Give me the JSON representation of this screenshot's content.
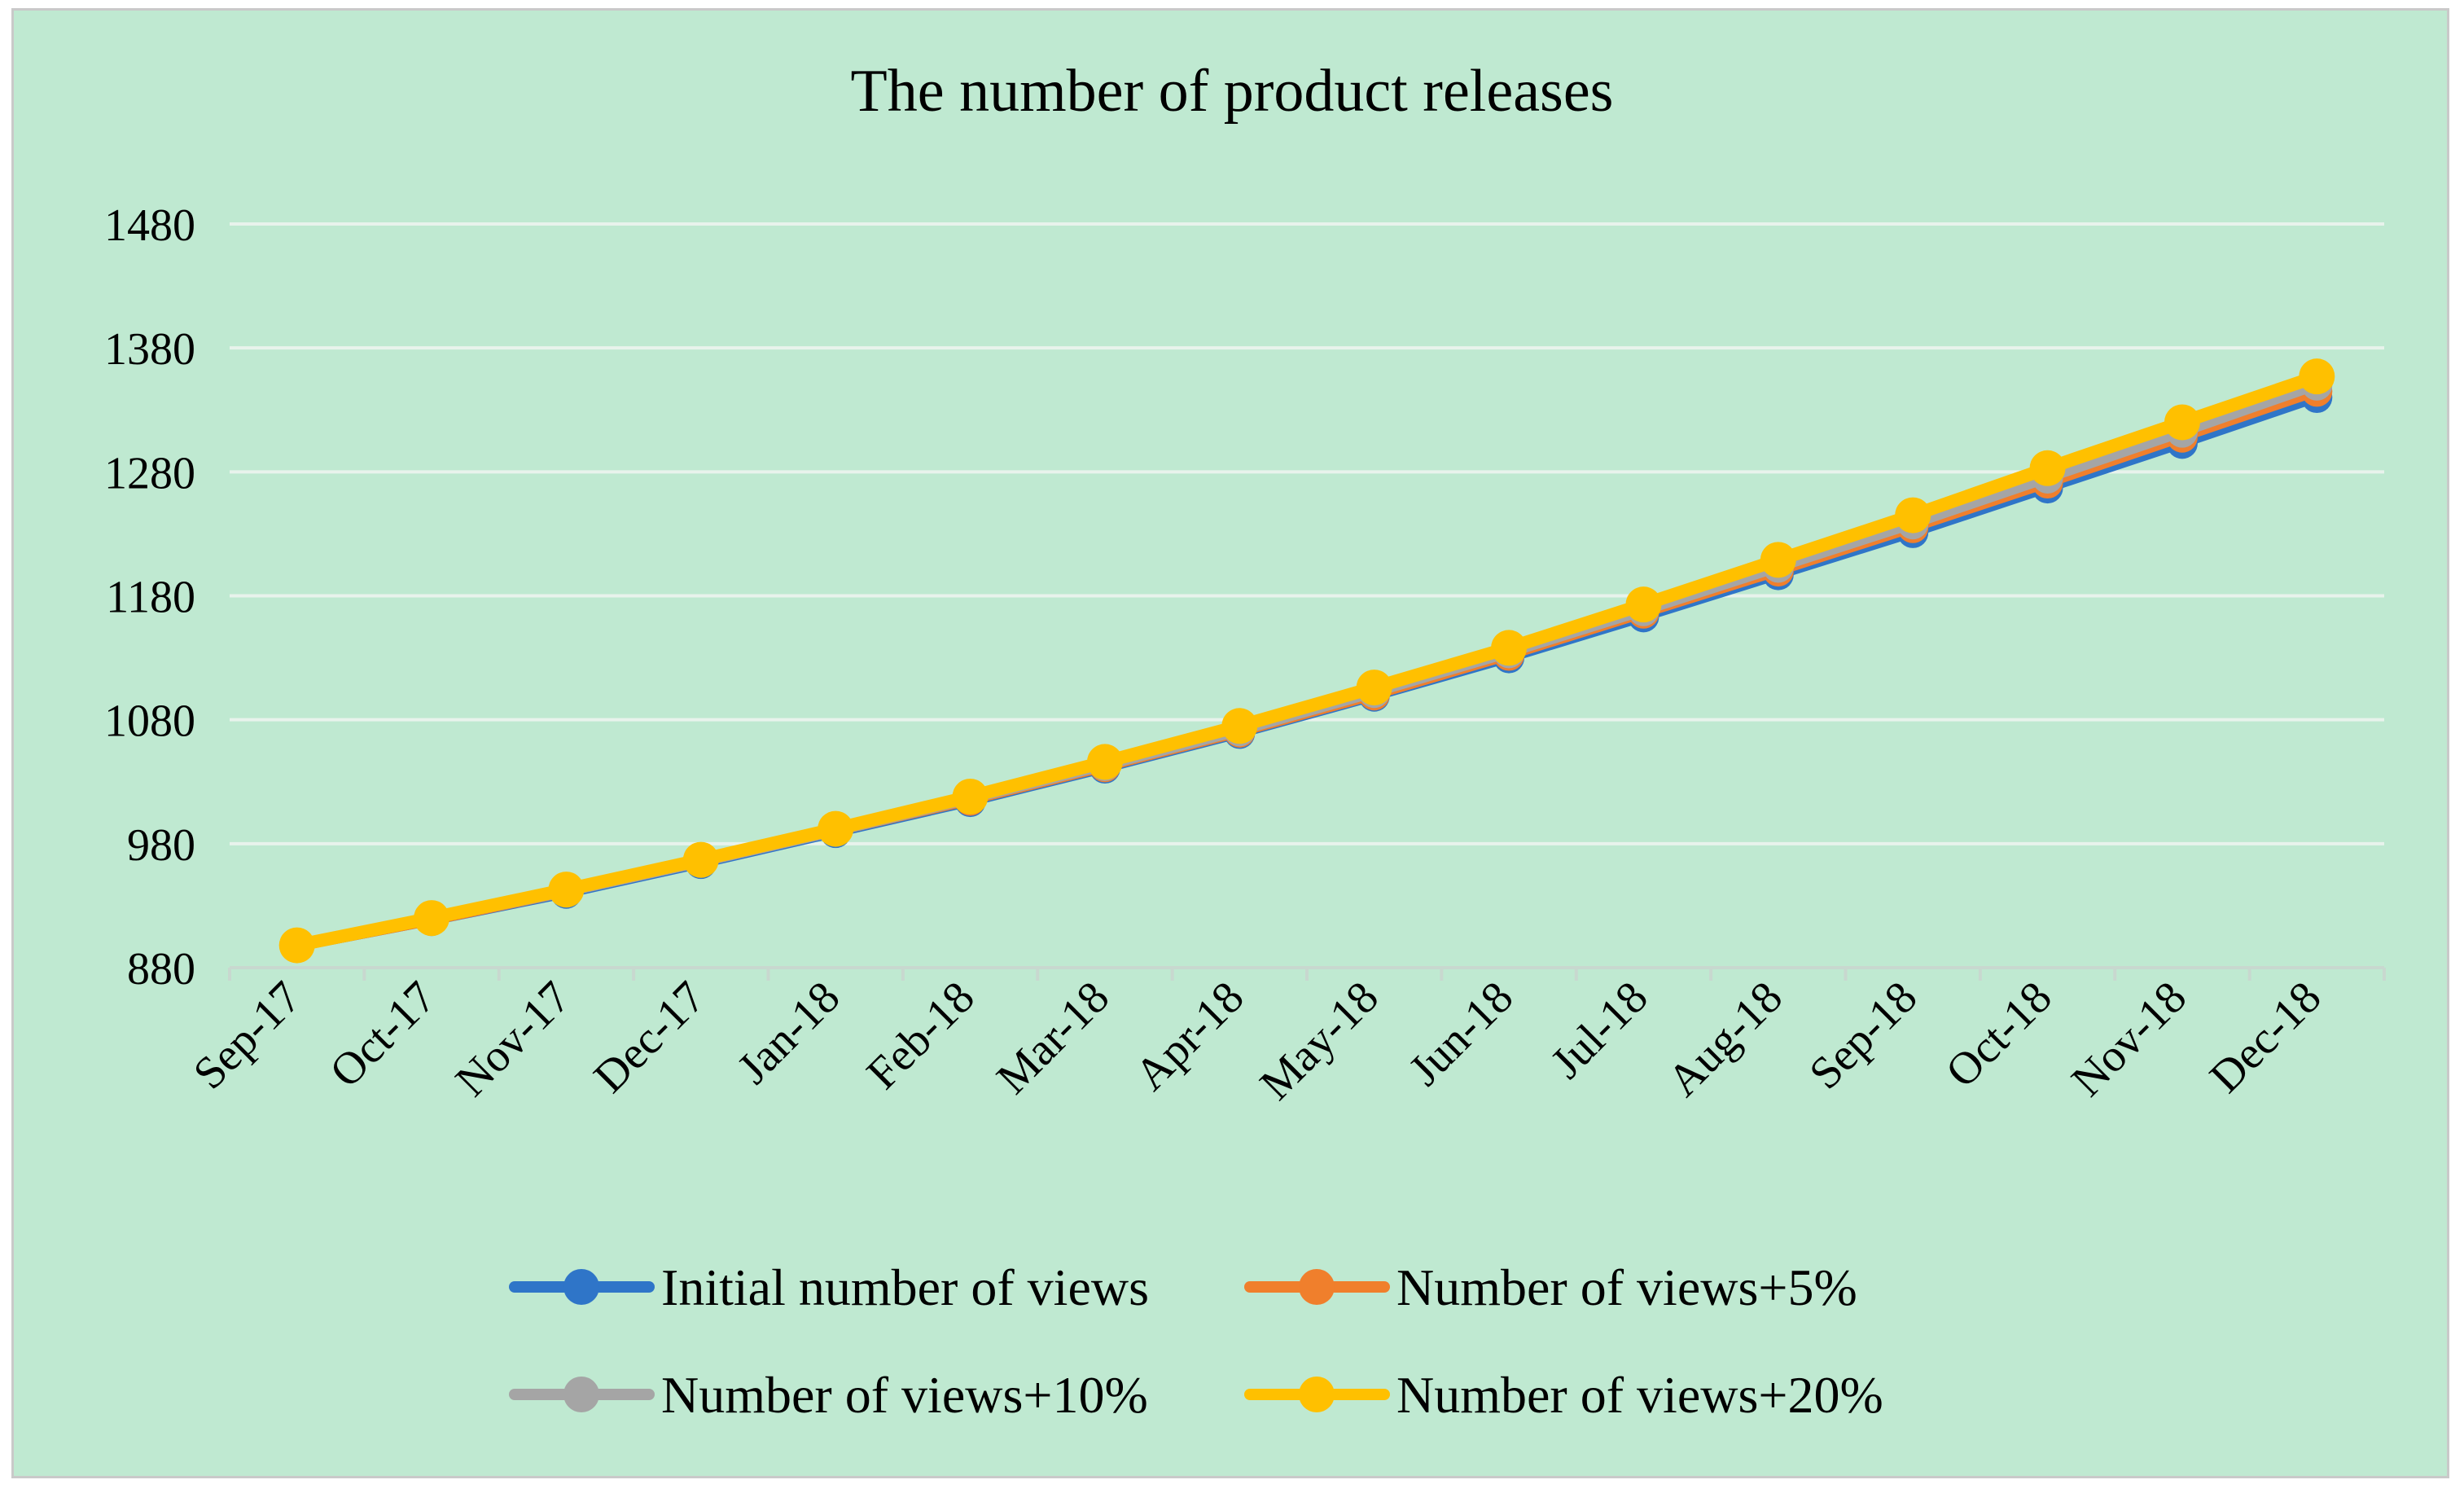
{
  "chart_data": {
    "type": "line",
    "title": "The number of product releases",
    "xlabel": "",
    "ylabel": "",
    "categories": [
      "Sep-17",
      "Oct-17",
      "Nov-17",
      "Dec-17",
      "Jan-18",
      "Feb-18",
      "Mar-18",
      "Apr-18",
      "May-18",
      "Jun-18",
      "Jul-18",
      "Aug-18",
      "Sep-18",
      "Oct-18",
      "Nov-18",
      "Dec-18"
    ],
    "ylim": [
      880,
      1480
    ],
    "yticks": [
      880,
      980,
      1080,
      1180,
      1280,
      1380,
      1480
    ],
    "grid": true,
    "legend_position": "bottom",
    "series": [
      {
        "name": "Initial number of views",
        "color": "#2f75c8",
        "values": [
          897,
          918,
          940,
          964,
          989,
          1014,
          1041,
          1069,
          1099,
          1130,
          1163,
          1197,
          1231,
          1267,
          1303,
          1340
        ]
      },
      {
        "name": "Number of views+5%",
        "color": "#f07f2c",
        "values": [
          897,
          918,
          941,
          965,
          990,
          1015,
          1042,
          1070,
          1100,
          1132,
          1166,
          1200,
          1235,
          1271,
          1308,
          1345
        ]
      },
      {
        "name": "Number of views+10%",
        "color": "#a5a5a5",
        "values": [
          897,
          919,
          941,
          965,
          990,
          1016,
          1043,
          1071,
          1102,
          1134,
          1168,
          1203,
          1238,
          1275,
          1312,
          1350
        ]
      },
      {
        "name": "Number of views+20%",
        "color": "#ffc000",
        "values": [
          898,
          920,
          943,
          967,
          992,
          1018,
          1046,
          1075,
          1106,
          1138,
          1173,
          1209,
          1245,
          1283,
          1320,
          1357
        ]
      }
    ]
  },
  "colors": {
    "background": "#bfe9d1",
    "gridline": "#e8f3ec",
    "axis": "#c8d8cf"
  }
}
